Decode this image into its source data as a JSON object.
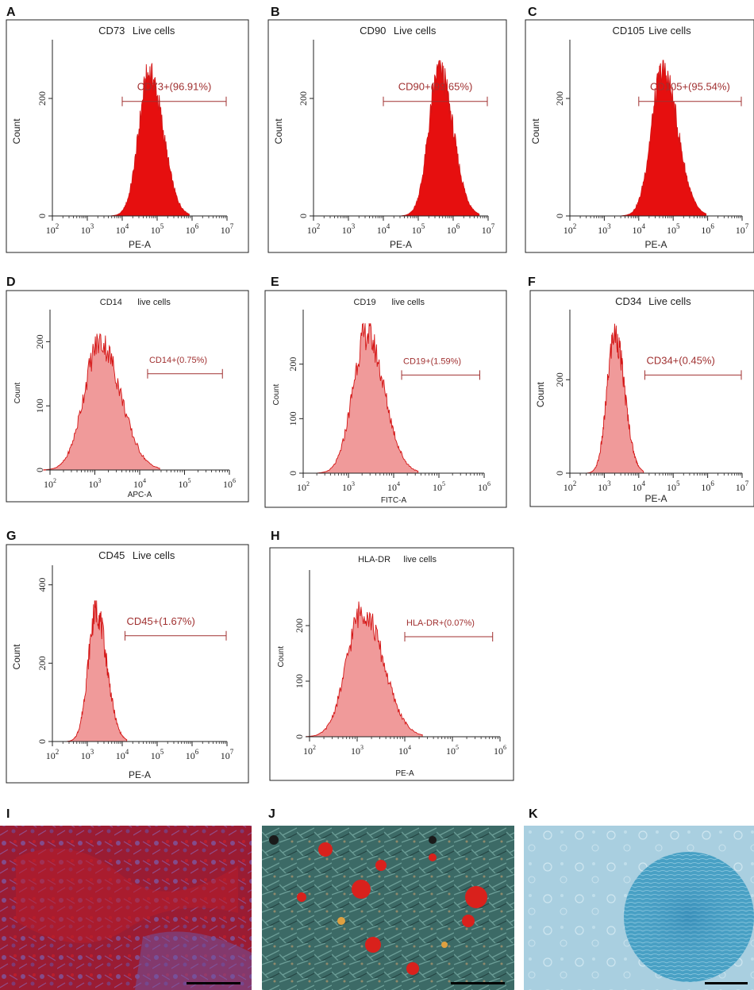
{
  "colors": {
    "positive_fill": "#e60f0f",
    "negative_fill": "#f09a9a",
    "histogram_edge": "#d41515",
    "gate": "#a03030",
    "axis": "#222222"
  },
  "chart_data": [
    {
      "type": "area",
      "panel": "A",
      "title": "CD73",
      "subtitle": "Live cells",
      "xlabel": "PE-A",
      "ylabel": "Count",
      "x_scale": "log",
      "xlim": [
        100,
        10000000
      ],
      "x_ticks": [
        "10^2",
        "10^3",
        "10^4",
        "10^5",
        "10^6",
        "10^7"
      ],
      "ylim": [
        0,
        300
      ],
      "y_ticks": [
        0,
        200
      ],
      "peak": {
        "x": 60000,
        "count": 260
      },
      "spread_decades": 0.3,
      "gate": {
        "label": "CD73+(96.91%)",
        "x_range": [
          10000,
          10000000
        ],
        "percent": 96.91
      },
      "style": "positive",
      "grid": false,
      "legend": "none"
    },
    {
      "type": "area",
      "panel": "B",
      "title": "CD90",
      "subtitle": "Live cells",
      "xlabel": "PE-A",
      "ylabel": "Count",
      "x_scale": "log",
      "xlim": [
        100,
        10000000
      ],
      "x_ticks": [
        "10^2",
        "10^3",
        "10^4",
        "10^5",
        "10^6",
        "10^7"
      ],
      "ylim": [
        0,
        300
      ],
      "y_ticks": [
        0,
        200
      ],
      "peak": {
        "x": 400000,
        "count": 265
      },
      "spread_decades": 0.3,
      "gate": {
        "label": "CD90+(99.65%)",
        "x_range": [
          10000,
          10000000
        ],
        "percent": 99.65
      },
      "style": "positive",
      "grid": false,
      "legend": "none"
    },
    {
      "type": "area",
      "panel": "C",
      "title": "CD105",
      "subtitle": "Live cells",
      "xlabel": "PE-A",
      "ylabel": "Count",
      "x_scale": "log",
      "xlim": [
        100,
        10000000
      ],
      "x_ticks": [
        "10^2",
        "10^3",
        "10^4",
        "10^5",
        "10^6",
        "10^7"
      ],
      "ylim": [
        0,
        300
      ],
      "y_ticks": [
        0,
        200
      ],
      "peak": {
        "x": 50000,
        "count": 265
      },
      "spread_decades": 0.33,
      "gate": {
        "label": "CD105+(95.54%)",
        "x_range": [
          10000,
          10000000
        ],
        "percent": 95.54
      },
      "style": "positive",
      "grid": false,
      "legend": "none"
    },
    {
      "type": "area",
      "panel": "D",
      "title": "CD14",
      "subtitle": "live cells",
      "xlabel": "APC-A",
      "ylabel": "Count",
      "x_scale": "log",
      "xlim": [
        100,
        1000000
      ],
      "x_ticks": [
        "10^2",
        "10^3",
        "10^4",
        "10^5",
        "10^6"
      ],
      "ylim": [
        0,
        250
      ],
      "y_ticks": [
        0,
        100,
        200
      ],
      "peak": {
        "x": 1300,
        "count": 215
      },
      "spread_decades": 0.35,
      "gate": {
        "label": "CD14+(0.75%)",
        "x_range": [
          15000,
          700000
        ],
        "percent": 0.75
      },
      "style": "negative",
      "grid": false,
      "legend": "none"
    },
    {
      "type": "area",
      "panel": "E",
      "title": "CD19",
      "subtitle": "live cells",
      "xlabel": "FITC-A",
      "ylabel": "Count",
      "x_scale": "log",
      "xlim": [
        100,
        1000000
      ],
      "x_ticks": [
        "10^2",
        "10^3",
        "10^4",
        "10^5",
        "10^6"
      ],
      "ylim": [
        0,
        300
      ],
      "y_ticks": [
        0,
        100,
        200
      ],
      "peak": {
        "x": 2500,
        "count": 275
      },
      "spread_decades": 0.3,
      "gate": {
        "label": "CD19+(1.59%)",
        "x_range": [
          15000,
          800000
        ],
        "percent": 1.59
      },
      "style": "negative",
      "grid": false,
      "legend": "none"
    },
    {
      "type": "area",
      "panel": "F",
      "title": "CD34",
      "subtitle": "Live cells",
      "xlabel": "PE-A",
      "ylabel": "Count",
      "x_scale": "log",
      "xlim": [
        100,
        10000000
      ],
      "x_ticks": [
        "10^2",
        "10^3",
        "10^4",
        "10^5",
        "10^6",
        "10^7"
      ],
      "ylim": [
        0,
        350
      ],
      "y_ticks": [
        0,
        200
      ],
      "peak": {
        "x": 2000,
        "count": 320
      },
      "spread_decades": 0.22,
      "gate": {
        "label": "CD34+(0.45%)",
        "x_range": [
          15000,
          10000000
        ],
        "percent": 0.45
      },
      "style": "negative",
      "grid": false,
      "legend": "none"
    },
    {
      "type": "area",
      "panel": "G",
      "title": "CD45",
      "subtitle": "Live cells",
      "xlabel": "PE-A",
      "ylabel": "Count",
      "x_scale": "log",
      "xlim": [
        100,
        10000000
      ],
      "x_ticks": [
        "10^2",
        "10^3",
        "10^4",
        "10^5",
        "10^6",
        "10^7"
      ],
      "ylim": [
        0,
        450
      ],
      "y_ticks": [
        0,
        200,
        400
      ],
      "peak": {
        "x": 1800,
        "count": 360
      },
      "spread_decades": 0.23,
      "gate": {
        "label": "CD45+(1.67%)",
        "x_range": [
          12000,
          10000000
        ],
        "percent": 1.67
      },
      "style": "negative",
      "grid": false,
      "legend": "none"
    },
    {
      "type": "area",
      "panel": "H",
      "title": "HLA-DR",
      "subtitle": "live cells",
      "xlabel": "PE-A",
      "ylabel": "Count",
      "x_scale": "log",
      "xlim": [
        100,
        1000000
      ],
      "x_ticks": [
        "10^2",
        "10^3",
        "10^4",
        "10^5",
        "10^6"
      ],
      "ylim": [
        0,
        300
      ],
      "y_ticks": [
        0,
        100,
        200
      ],
      "peak": {
        "x": 1300,
        "count": 245
      },
      "spread_decades": 0.33,
      "gate": {
        "label": "HLA-DR+(0.07%)",
        "x_range": [
          10000,
          700000
        ],
        "percent": 0.07
      },
      "style": "negative",
      "grid": false,
      "legend": "none"
    }
  ],
  "micrographs": [
    {
      "panel": "I",
      "stain": "red-purple"
    },
    {
      "panel": "J",
      "stain": "teal-red"
    },
    {
      "panel": "K",
      "stain": "light-blue"
    }
  ]
}
